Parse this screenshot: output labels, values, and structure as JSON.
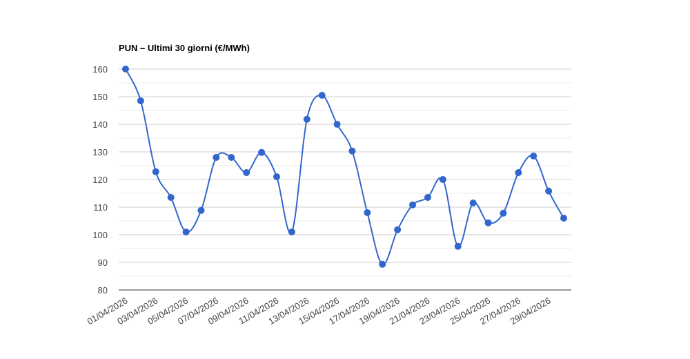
{
  "chart_data": {
    "type": "line",
    "title": "PUN – Ultimi 30 giorni (€/MWh)",
    "categories": [
      "01/04/2026",
      null,
      "03/04/2026",
      null,
      "05/04/2026",
      null,
      "07/04/2026",
      null,
      "09/04/2026",
      null,
      "11/04/2026",
      null,
      "13/04/2026",
      null,
      "15/04/2026",
      null,
      "17/04/2026",
      null,
      "19/04/2026",
      null,
      "21/04/2026",
      null,
      "23/04/2026",
      null,
      "25/04/2026",
      null,
      "27/04/2026",
      null,
      "29/04/2026",
      null
    ],
    "series": [
      {
        "color": "#3366cc",
        "values": [
          160,
          148.5,
          122.8,
          113.5,
          101,
          108.8,
          128,
          128,
          122.5,
          129.8,
          121,
          101,
          141.8,
          150.5,
          140,
          130.3,
          108,
          89.3,
          101.8,
          110.8,
          113.5,
          120,
          95.8,
          111.5,
          104.3,
          107.8,
          122.5,
          128.5,
          115.8,
          106
        ]
      }
    ],
    "ylim": [
      80,
      160
    ],
    "yticks": [
      80,
      90,
      100,
      110,
      120,
      130,
      140,
      150,
      160
    ],
    "minor_yticks": [
      85,
      95,
      105,
      115,
      125,
      135,
      145,
      155
    ],
    "grid": true,
    "smooth": true
  }
}
